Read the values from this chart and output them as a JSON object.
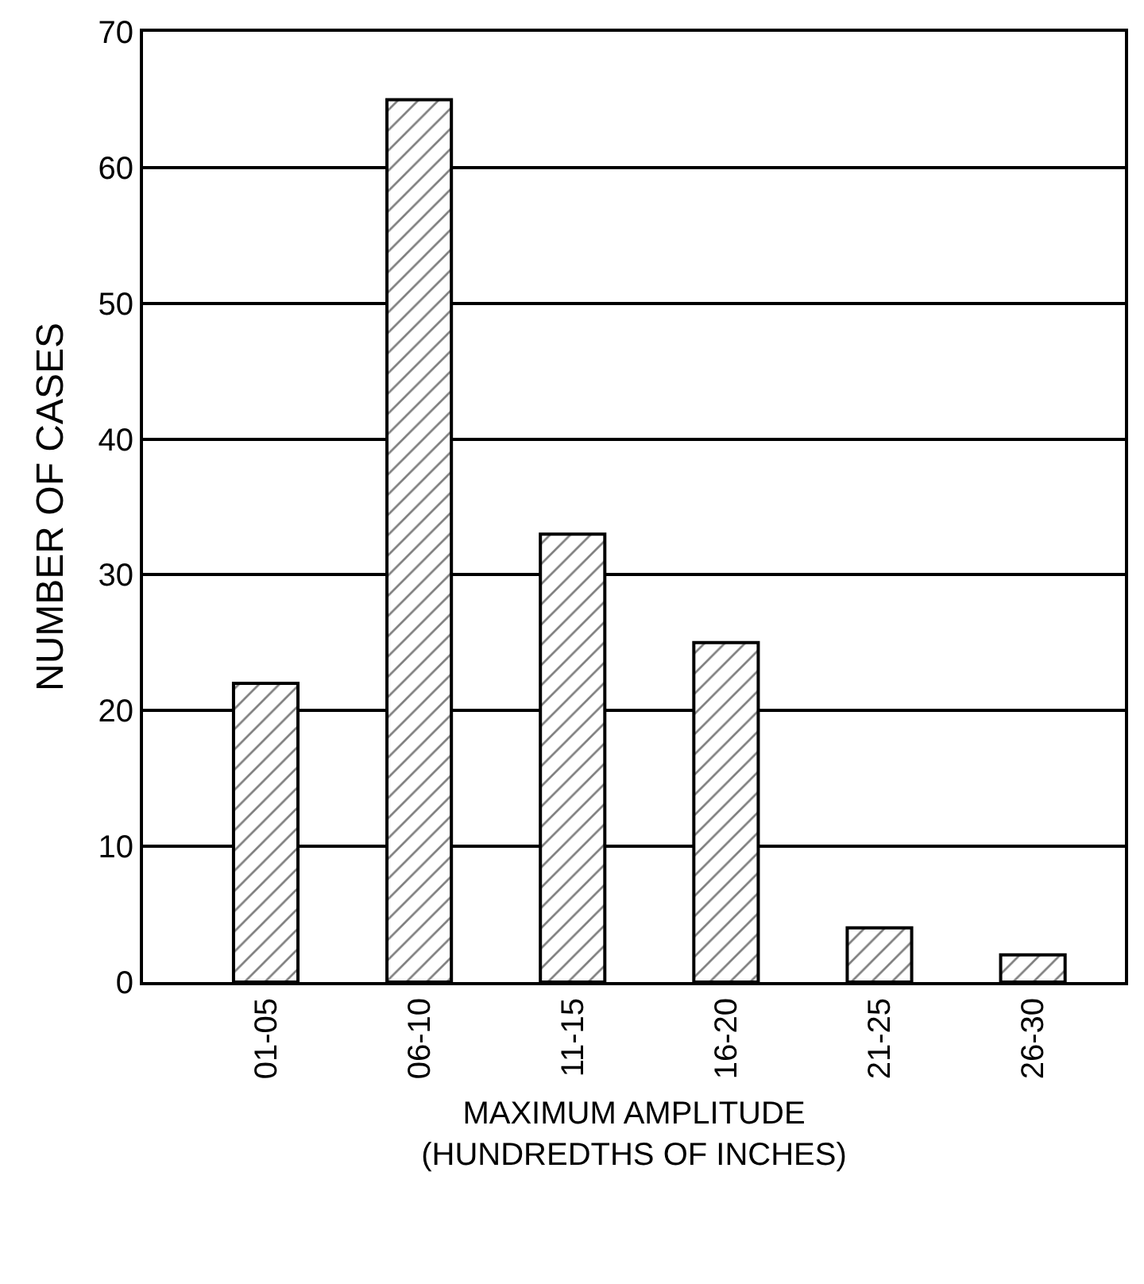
{
  "chart_data": {
    "type": "bar",
    "xlabel": "MAXIMUM AMPLITUDE\n(HUNDREDTHS OF INCHES)",
    "ylabel": "NUMBER OF CASES",
    "categories": [
      "01-05",
      "06-10",
      "11-15",
      "16-20",
      "21-25",
      "26-30"
    ],
    "values": [
      22,
      65,
      33,
      25,
      4,
      2
    ],
    "color": "#000000",
    "ylim": [
      0,
      70
    ],
    "yticks": [
      0,
      10,
      20,
      30,
      40,
      50,
      60,
      70
    ],
    "grid": "y"
  }
}
